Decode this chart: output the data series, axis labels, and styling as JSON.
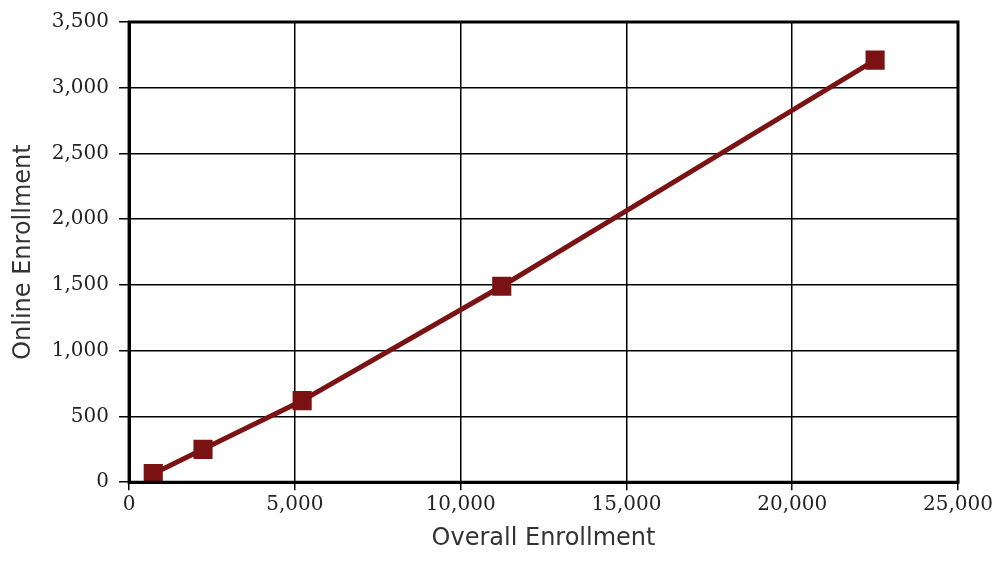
{
  "chart_data": {
    "type": "line",
    "xlabel": "Overall Enrollment",
    "ylabel": "Online Enrollment",
    "x": [
      730,
      2230,
      5220,
      11240,
      22500
    ],
    "series": [
      {
        "color": "#7b1214",
        "values": [
          65,
          250,
          620,
          1490,
          3210
        ]
      }
    ],
    "xlim": [
      0,
      25000
    ],
    "xticks": [
      {
        "value": 0,
        "label": "0"
      },
      {
        "value": 5000,
        "label": "5,000"
      },
      {
        "value": 10000,
        "label": "10,000"
      },
      {
        "value": 15000,
        "label": "15,000"
      },
      {
        "value": 20000,
        "label": "20,000"
      },
      {
        "value": 25000,
        "label": "25,000"
      }
    ],
    "ylim": [
      0,
      3500
    ],
    "yticks": [
      {
        "value": 0,
        "label": "0"
      },
      {
        "value": 500,
        "label": "500"
      },
      {
        "value": 1000,
        "label": "1,000"
      },
      {
        "value": 1500,
        "label": "1,500"
      },
      {
        "value": 2000,
        "label": "2,000"
      },
      {
        "value": 2500,
        "label": "2,500"
      },
      {
        "value": 3000,
        "label": "3,000"
      },
      {
        "value": 3500,
        "label": "3,500"
      }
    ],
    "grid": true,
    "legend": false,
    "marker": "square",
    "line_style": "solid"
  }
}
